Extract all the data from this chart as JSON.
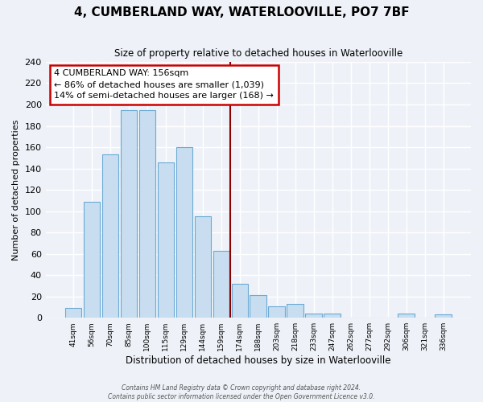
{
  "title": "4, CUMBERLAND WAY, WATERLOOVILLE, PO7 7BF",
  "subtitle": "Size of property relative to detached houses in Waterlooville",
  "xlabel": "Distribution of detached houses by size in Waterlooville",
  "ylabel": "Number of detached properties",
  "bar_color": "#c8ddf0",
  "bar_edge_color": "#6aaad4",
  "background_color": "#eef2f8",
  "grid_color": "#ffffff",
  "vline_color": "#8b0000",
  "annotation_title": "4 CUMBERLAND WAY: 156sqm",
  "annotation_line1": "← 86% of detached houses are smaller (1,039)",
  "annotation_line2": "14% of semi-detached houses are larger (168) →",
  "annotation_box_color": "white",
  "annotation_box_edge": "#cc0000",
  "categories": [
    "41sqm",
    "56sqm",
    "70sqm",
    "85sqm",
    "100sqm",
    "115sqm",
    "129sqm",
    "144sqm",
    "159sqm",
    "174sqm",
    "188sqm",
    "203sqm",
    "218sqm",
    "233sqm",
    "247sqm",
    "262sqm",
    "277sqm",
    "292sqm",
    "306sqm",
    "321sqm",
    "336sqm"
  ],
  "values": [
    9,
    109,
    153,
    195,
    195,
    146,
    160,
    95,
    63,
    32,
    21,
    11,
    13,
    4,
    4,
    0,
    0,
    0,
    4,
    0,
    3
  ],
  "ylim": [
    0,
    240
  ],
  "yticks": [
    0,
    20,
    40,
    60,
    80,
    100,
    120,
    140,
    160,
    180,
    200,
    220,
    240
  ],
  "vline_pos": 8.5,
  "footer_line1": "Contains HM Land Registry data © Crown copyright and database right 2024.",
  "footer_line2": "Contains public sector information licensed under the Open Government Licence v3.0."
}
